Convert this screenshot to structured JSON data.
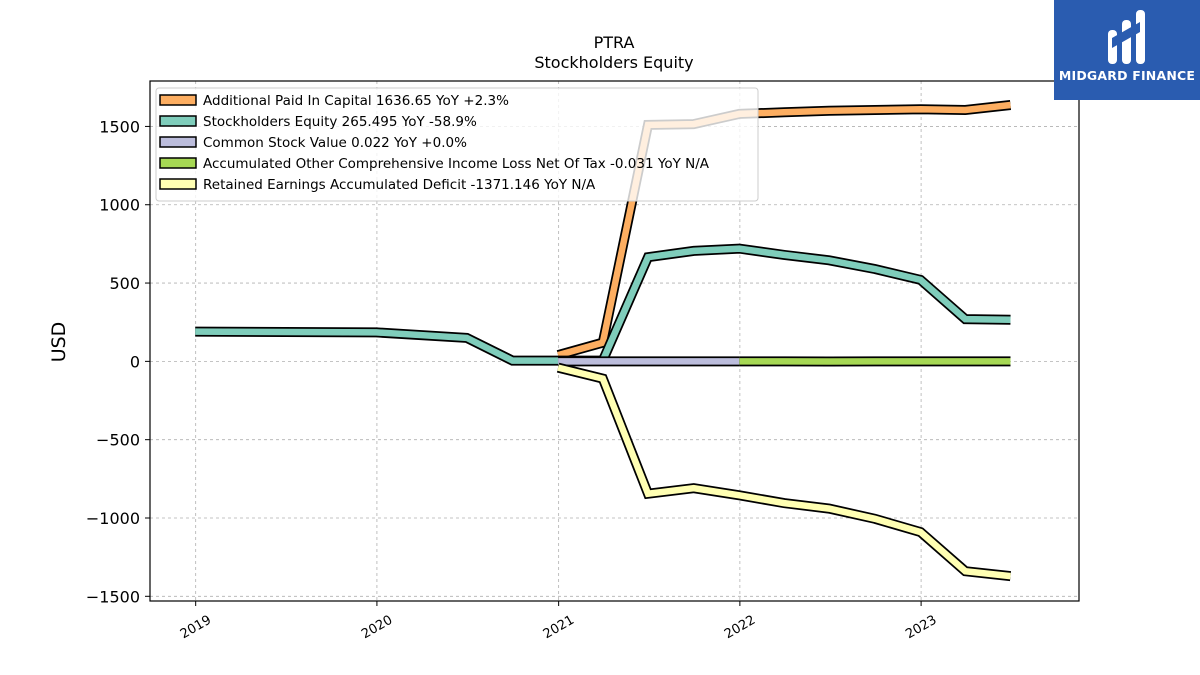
{
  "brand": {
    "name": "MIDGARD FINANCE",
    "bg_color": "#2a5cb0"
  },
  "chart_data": {
    "type": "line",
    "title": "PTRA",
    "subtitle": "Stockholders  Equity",
    "ylabel": "USD",
    "xlabel": "",
    "ylim": [
      -1530,
      1790
    ],
    "xlim": [
      "2018-10-01",
      "2023-11-15"
    ],
    "yticks": [
      -1500,
      -1000,
      -500,
      0,
      500,
      1000,
      1500
    ],
    "ytick_labels": [
      "−1500",
      "−1000",
      "−500",
      "0",
      "500",
      "1000",
      "1500"
    ],
    "xticks": [
      "2019-01-01",
      "2020-01-01",
      "2021-01-01",
      "2022-01-01",
      "2023-01-01"
    ],
    "xtick_labels": [
      "2019",
      "2020",
      "2021",
      "2022",
      "2023"
    ],
    "grid": true,
    "legend_position": "top-left",
    "series": [
      {
        "name": "Additional Paid In Capital  1636.65 YoY +2.3%",
        "color": "#fdae61",
        "x": [
          "2020-12-31",
          "2021-03-31",
          "2021-06-30",
          "2021-09-30",
          "2021-12-31",
          "2022-03-31",
          "2022-06-30",
          "2022-09-30",
          "2022-12-31",
          "2023-03-31",
          "2023-06-30"
        ],
        "y": [
          40,
          120,
          1510,
          1515,
          1580,
          1590,
          1600,
          1605,
          1610,
          1605,
          1636.65
        ]
      },
      {
        "name": "Stockholders Equity  265.495 YoY -58.9%",
        "color": "#7fcdbb",
        "x": [
          "2018-12-31",
          "2019-12-31",
          "2020-06-30",
          "2020-09-30",
          "2020-12-31",
          "2021-03-31",
          "2021-06-30",
          "2021-09-30",
          "2021-12-31",
          "2022-03-31",
          "2022-06-30",
          "2022-09-30",
          "2022-12-31",
          "2023-03-31",
          "2023-06-30"
        ],
        "y": [
          190,
          185,
          150,
          5,
          5,
          5,
          665,
          705,
          720,
          680,
          645,
          590,
          520,
          270,
          265.495
        ]
      },
      {
        "name": "Common Stock Value  0.022 YoY +0.0%",
        "color": "#bcbddc",
        "x": [
          "2020-12-31",
          "2021-03-31",
          "2021-06-30",
          "2021-09-30",
          "2021-12-31"
        ],
        "y": [
          0.02,
          0.02,
          0.022,
          0.022,
          0.022
        ]
      },
      {
        "name": "Accumulated Other Comprehensive Income Loss Net Of Tax  -0.031 YoY N/A",
        "color": "#a6d854",
        "x": [
          "2021-12-31",
          "2022-03-31",
          "2022-06-30",
          "2022-09-30",
          "2022-12-31",
          "2023-03-31",
          "2023-06-30"
        ],
        "y": [
          0,
          -0.5,
          -1,
          -0.5,
          0,
          0,
          -0.031
        ]
      },
      {
        "name": "Retained Earnings Accumulated Deficit  -1371.146 YoY N/A",
        "color": "#ffffb3",
        "x": [
          "2020-12-31",
          "2021-03-31",
          "2021-06-30",
          "2021-09-30",
          "2021-12-31",
          "2022-03-31",
          "2022-06-30",
          "2022-09-30",
          "2022-12-31",
          "2023-03-31",
          "2023-06-30"
        ],
        "y": [
          -40,
          -110,
          -845,
          -810,
          -855,
          -905,
          -940,
          -1005,
          -1090,
          -1340,
          -1371.146
        ]
      }
    ]
  }
}
